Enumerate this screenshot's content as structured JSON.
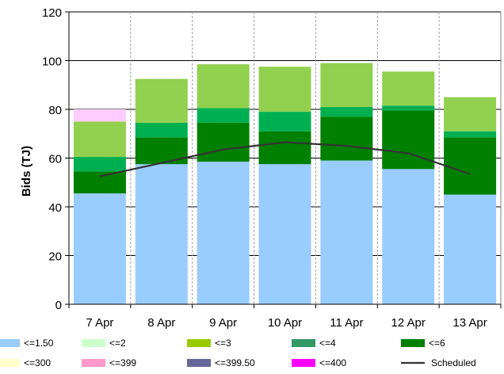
{
  "chart_data": {
    "type": "bar",
    "stacked": true,
    "categories": [
      "7 Apr",
      "8 Apr",
      "9 Apr",
      "10 Apr",
      "11 Apr",
      "12 Apr",
      "13 Apr"
    ],
    "ylabel": "Bids (TJ)",
    "ylim": [
      0,
      120
    ],
    "yticks": [
      0,
      20,
      40,
      60,
      80,
      100,
      120
    ],
    "grid": {
      "horizontal": true,
      "vertical": true
    },
    "legend_position": "bottom",
    "series": [
      {
        "name": "<=1.50",
        "color": "#99ccff",
        "values": [
          45.5,
          57.5,
          58.5,
          57.5,
          59.0,
          55.5,
          45.0
        ]
      },
      {
        "name": "<=2",
        "color": "#ccffcc",
        "values": [
          0,
          0,
          0,
          0,
          0,
          0,
          0
        ]
      },
      {
        "name": "<=6",
        "color": "#008000",
        "values": [
          9.0,
          11.0,
          16.0,
          13.5,
          18.0,
          24.0,
          23.5
        ]
      },
      {
        "name": "<=4",
        "color": "#00b050",
        "values": [
          6.0,
          6.0,
          6.0,
          8.0,
          4.0,
          2.0,
          2.5
        ]
      },
      {
        "name": "<=3",
        "color": "#92d050",
        "values": [
          14.5,
          18.0,
          18.0,
          18.5,
          18.0,
          14.0,
          14.0
        ]
      },
      {
        "name": "<=300",
        "color": "#ffffcc",
        "values": [
          0,
          0,
          0,
          0,
          0,
          0,
          0
        ]
      },
      {
        "name": "<=399",
        "color": "#ffccff",
        "values": [
          5.0,
          0,
          0,
          0,
          0,
          0,
          0
        ]
      },
      {
        "name": "<=399.50",
        "color": "#666699",
        "values": [
          0,
          0,
          0,
          0,
          0,
          0,
          0
        ]
      },
      {
        "name": "<=400",
        "color": "#ff00ff",
        "values": [
          0,
          0,
          0,
          0,
          0,
          0,
          0
        ]
      }
    ],
    "line_series": [
      {
        "name": "Scheduled",
        "color": "#333333",
        "values": [
          52.5,
          58.0,
          63.5,
          66.5,
          65.0,
          62.0,
          53.5
        ]
      }
    ],
    "legend": [
      {
        "label": "<=1.50",
        "color": "#99ccff",
        "kind": "box"
      },
      {
        "label": "<=2",
        "color": "#ccffcc",
        "kind": "box"
      },
      {
        "label": "<=3",
        "color": "#99cc00",
        "kind": "box"
      },
      {
        "label": "<=4",
        "color": "#339966",
        "kind": "box"
      },
      {
        "label": "<=6",
        "color": "#008000",
        "kind": "box"
      },
      {
        "label": "<=300",
        "color": "#ffffcc",
        "kind": "box"
      },
      {
        "label": "<=399",
        "color": "#ff99cc",
        "kind": "box"
      },
      {
        "label": "<=399.50",
        "color": "#666699",
        "kind": "box"
      },
      {
        "label": "<=400",
        "color": "#ff00ff",
        "kind": "box"
      },
      {
        "label": "Scheduled",
        "color": "#333333",
        "kind": "line"
      }
    ]
  }
}
